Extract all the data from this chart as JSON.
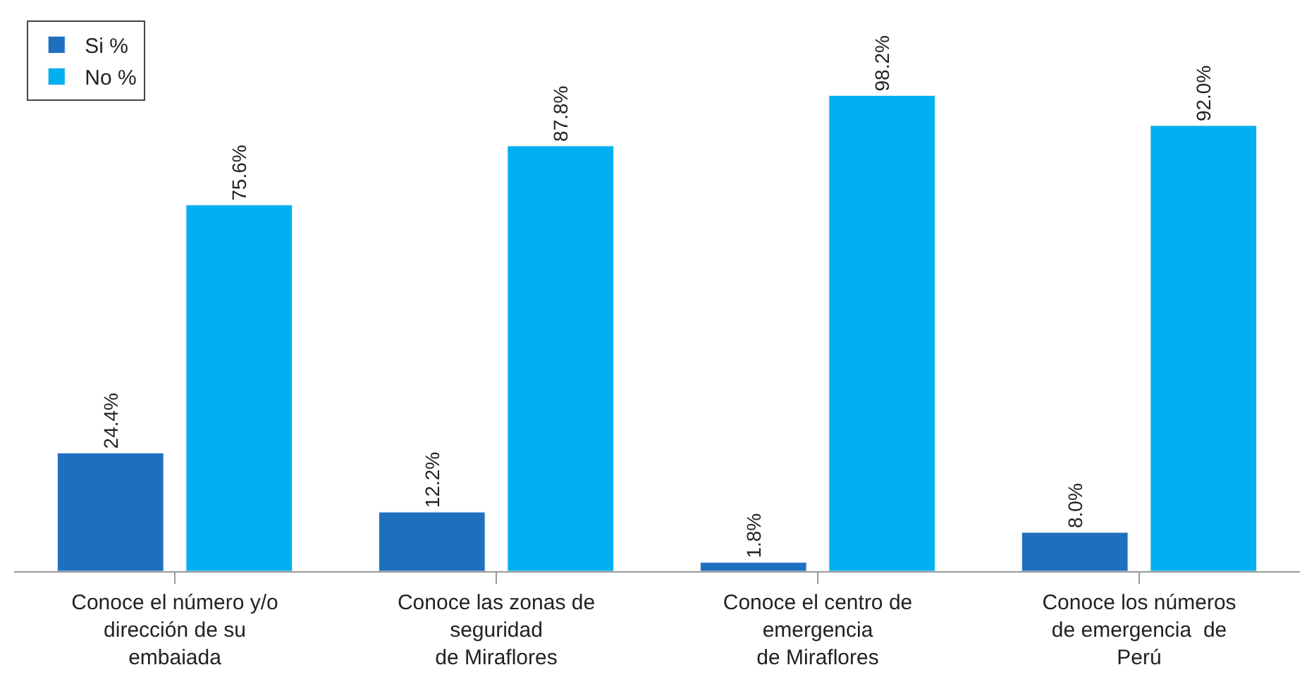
{
  "chart_data": {
    "type": "bar",
    "categories": [
      "Conoce el número y/o\ndirección de su\nembaiada",
      "Conoce las zonas de\nseguridad\nde Miraflores",
      "Conoce el centro de\nemergencia\nde Miraflores",
      "Conoce los números\nde emergencia  de\nPerú"
    ],
    "series": [
      {
        "name": "Si %",
        "color": "#1f6fbf",
        "values": [
          24.4,
          12.2,
          1.8,
          8.0
        ],
        "value_labels": [
          "24.4%",
          "12.2%",
          "1.8%",
          "8.0%"
        ]
      },
      {
        "name": "No %",
        "color": "#00b0f0",
        "values": [
          75.6,
          87.8,
          98.2,
          92.0
        ],
        "value_labels": [
          "75.6%",
          "87.8%",
          "98.2%",
          "92.0%"
        ]
      }
    ],
    "legend": "top left"
  }
}
